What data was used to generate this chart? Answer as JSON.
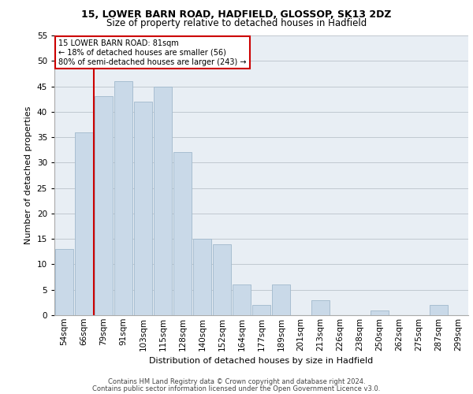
{
  "title1": "15, LOWER BARN ROAD, HADFIELD, GLOSSOP, SK13 2DZ",
  "title2": "Size of property relative to detached houses in Hadfield",
  "xlabel": "Distribution of detached houses by size in Hadfield",
  "ylabel": "Number of detached properties",
  "footer1": "Contains HM Land Registry data © Crown copyright and database right 2024.",
  "footer2": "Contains public sector information licensed under the Open Government Licence v3.0.",
  "annotation_line1": "15 LOWER BARN ROAD: 81sqm",
  "annotation_line2": "← 18% of detached houses are smaller (56)",
  "annotation_line3": "80% of semi-detached houses are larger (243) →",
  "categories": [
    "54sqm",
    "66sqm",
    "79sqm",
    "91sqm",
    "103sqm",
    "115sqm",
    "128sqm",
    "140sqm",
    "152sqm",
    "164sqm",
    "177sqm",
    "189sqm",
    "201sqm",
    "213sqm",
    "226sqm",
    "238sqm",
    "250sqm",
    "262sqm",
    "275sqm",
    "287sqm",
    "299sqm"
  ],
  "values": [
    13,
    36,
    43,
    46,
    42,
    45,
    32,
    15,
    14,
    6,
    2,
    6,
    0,
    3,
    0,
    0,
    1,
    0,
    0,
    2,
    0
  ],
  "bar_color": "#c9d9e8",
  "bar_edge_color": "#a0b8cc",
  "vline_color": "#cc0000",
  "annotation_box_facecolor": "#ffffff",
  "annotation_box_edgecolor": "#cc0000",
  "ylim": [
    0,
    55
  ],
  "yticks": [
    0,
    5,
    10,
    15,
    20,
    25,
    30,
    35,
    40,
    45,
    50,
    55
  ],
  "grid_color": "#c0c8d0",
  "bg_color": "#e8eef4",
  "title1_fontsize": 9,
  "title2_fontsize": 8.5,
  "ylabel_fontsize": 8,
  "xlabel_fontsize": 8,
  "tick_fontsize": 7.5,
  "annotation_fontsize": 7,
  "footer_fontsize": 6
}
